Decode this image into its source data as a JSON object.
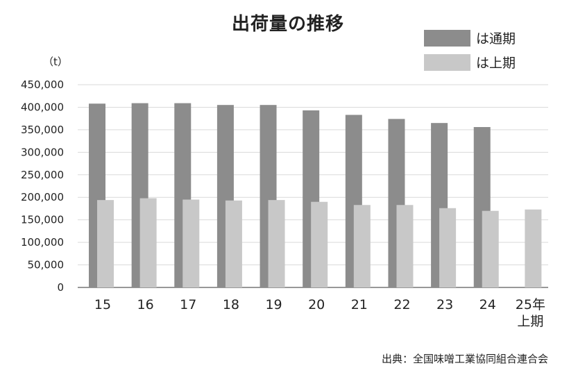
{
  "chart_data": {
    "type": "bar",
    "title": "出荷量の推移",
    "unit_label": "（t）",
    "categories": [
      "15",
      "16",
      "17",
      "18",
      "19",
      "20",
      "21",
      "22",
      "23",
      "24",
      "25年\n上期"
    ],
    "series": [
      {
        "name": "は通期",
        "color": "#8c8c8c",
        "values": [
          408000,
          409000,
          409000,
          405000,
          405000,
          393000,
          383000,
          374000,
          365000,
          356000,
          null
        ]
      },
      {
        "name": "は上期",
        "color": "#c8c8c8",
        "values": [
          194000,
          198000,
          195000,
          193000,
          194000,
          190000,
          183000,
          183000,
          176000,
          170000,
          173000
        ]
      }
    ],
    "ylim": [
      0,
      450000
    ],
    "yticks": [
      "0",
      "50,000",
      "100,000",
      "150,000",
      "200,000",
      "250,000",
      "300,000",
      "350,000",
      "400,000",
      "450,000"
    ],
    "ytick_values": [
      0,
      50000,
      100000,
      150000,
      200000,
      250000,
      300000,
      350000,
      400000,
      450000
    ],
    "grid": true,
    "legend_position": "top-right",
    "source": "出典：全国味噌工業協同組合連合会"
  }
}
